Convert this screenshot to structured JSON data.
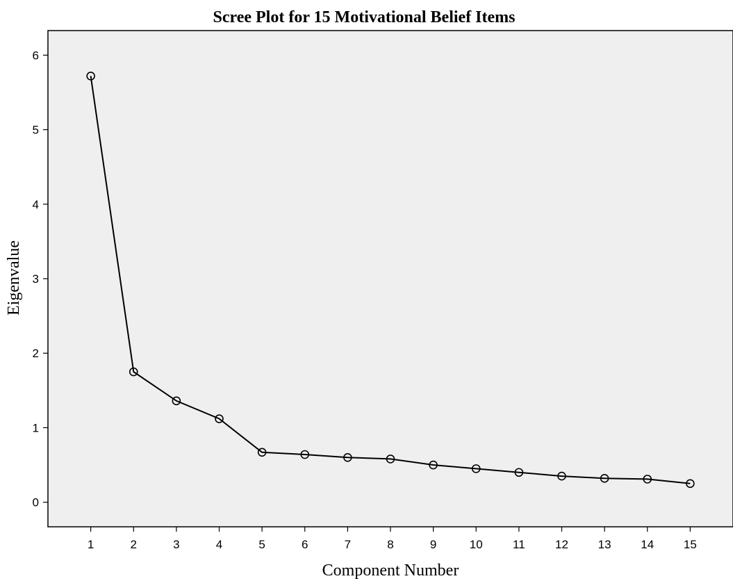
{
  "chart_data": {
    "type": "line",
    "title": "Scree Plot for 15 Motivational Belief Items",
    "xlabel": "Component Number",
    "ylabel": "Eigenvalue",
    "x": [
      1,
      2,
      3,
      4,
      5,
      6,
      7,
      8,
      9,
      10,
      11,
      12,
      13,
      14,
      15
    ],
    "x_tick_labels": [
      "1",
      "2",
      "3",
      "4",
      "5",
      "6",
      "7",
      "8",
      "9",
      "10",
      "11",
      "12",
      "13",
      "14",
      "15"
    ],
    "y_ticks": [
      0,
      1,
      2,
      3,
      4,
      5,
      6
    ],
    "y_tick_labels": [
      "0",
      "1",
      "2",
      "3",
      "4",
      "5",
      "6"
    ],
    "values": [
      5.72,
      1.75,
      1.36,
      1.12,
      0.67,
      0.64,
      0.6,
      0.58,
      0.5,
      0.45,
      0.4,
      0.35,
      0.32,
      0.31,
      0.25
    ],
    "xlim": [
      0,
      16
    ],
    "ylim": [
      -0.33,
      6.33
    ],
    "grid": false,
    "marker": "open-circle",
    "colors": {
      "line": "#000000",
      "plot_background": "#efefef",
      "page_background": "#ffffff"
    }
  }
}
